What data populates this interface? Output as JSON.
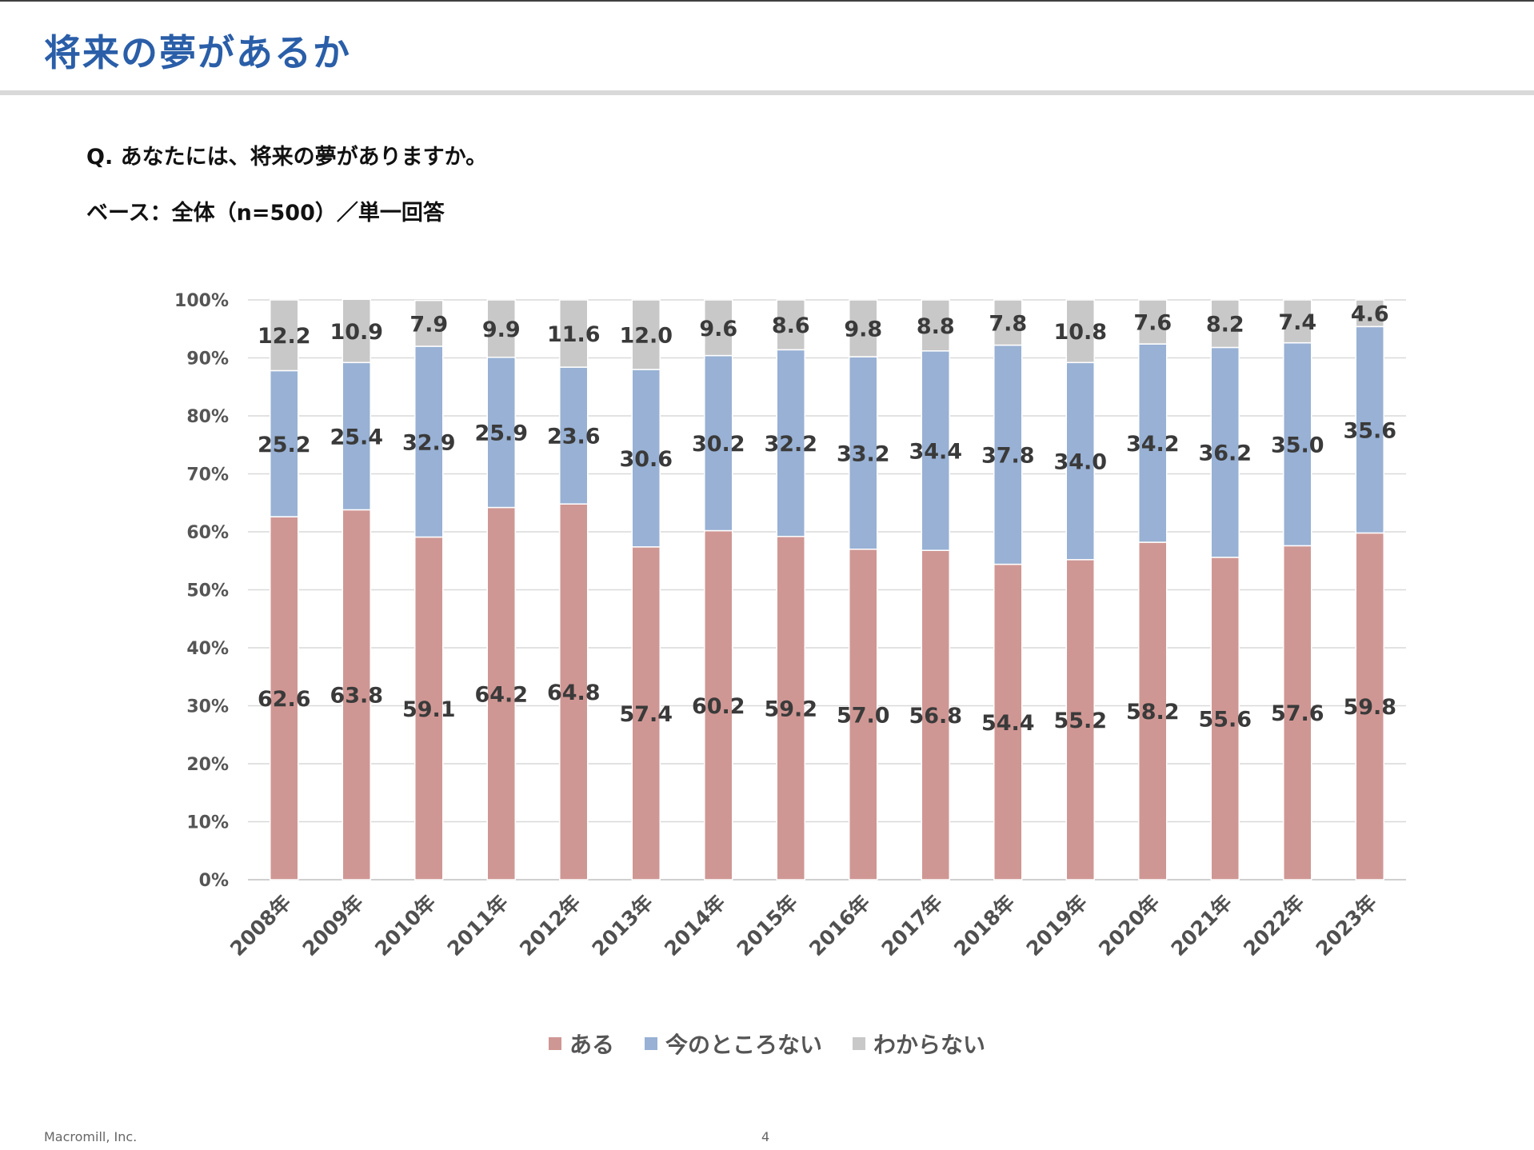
{
  "title": "将来の夢があるか",
  "question": "Q. あなたには、将来の夢がありますか。",
  "base": "ベース：全体（n=500）／単一回答",
  "footer": {
    "company": "Macromill, Inc.",
    "page": "4"
  },
  "chart_data": {
    "type": "bar",
    "stacked": true,
    "orientation": "vertical",
    "categories": [
      "2008年",
      "2009年",
      "2010年",
      "2011年",
      "2012年",
      "2013年",
      "2014年",
      "2015年",
      "2016年",
      "2017年",
      "2018年",
      "2019年",
      "2020年",
      "2021年",
      "2022年",
      "2023年"
    ],
    "series": [
      {
        "name": "ある",
        "color": "#cf9794",
        "values": [
          62.6,
          63.8,
          59.1,
          64.2,
          64.8,
          57.4,
          60.2,
          59.2,
          57.0,
          56.8,
          54.4,
          55.2,
          58.2,
          55.6,
          57.6,
          59.8
        ],
        "labels": [
          "62.6",
          "63.8",
          "59.1",
          "64.2",
          "64.8",
          "57.4",
          "60.2",
          "59.2",
          "57.0",
          "56.8",
          "54.4",
          "55.2",
          "58.2",
          "55.6",
          "57.6",
          "59.8"
        ]
      },
      {
        "name": "今のところない",
        "color": "#98b1d4",
        "values": [
          25.2,
          25.4,
          32.9,
          25.9,
          23.6,
          30.6,
          30.2,
          32.2,
          33.2,
          34.4,
          37.8,
          34.0,
          34.2,
          36.2,
          35.0,
          35.6
        ],
        "labels": [
          "25.2",
          "25.4",
          "32.9",
          "25.9",
          "23.6",
          "30.6",
          "30.2",
          "32.2",
          "33.2",
          "34.4",
          "37.8",
          "34.0",
          "34.2",
          "36.2",
          "35.0",
          "35.6"
        ]
      },
      {
        "name": "わからない",
        "color": "#c8c8c8",
        "values": [
          12.2,
          10.9,
          7.9,
          9.9,
          11.6,
          12.0,
          9.6,
          8.6,
          9.8,
          8.8,
          7.8,
          10.8,
          7.6,
          8.2,
          7.4,
          4.6
        ],
        "labels": [
          "12.2",
          "10.9",
          "7.9",
          "9.9",
          "11.6",
          "12.0",
          "9.6",
          "8.6",
          "9.8",
          "8.8",
          "7.8",
          "10.8",
          "7.6",
          "8.2",
          "7.4",
          "4.6"
        ]
      }
    ],
    "yticks": [
      "0%",
      "10%",
      "20%",
      "30%",
      "40%",
      "50%",
      "60%",
      "70%",
      "80%",
      "90%",
      "100%"
    ],
    "ylim": [
      0,
      100
    ],
    "grid": true,
    "legend": "bottom-center"
  }
}
